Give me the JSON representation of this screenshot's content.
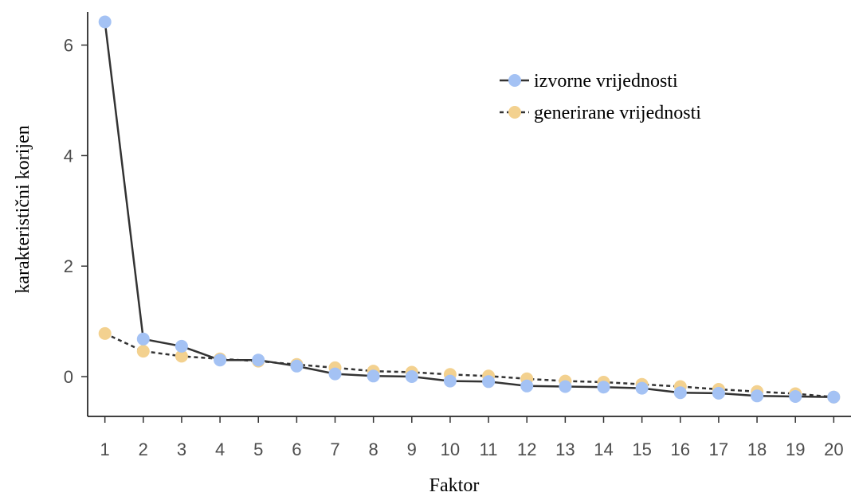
{
  "chart_data": {
    "type": "line",
    "xlabel": "Faktor",
    "ylabel": "karakteristični korijen",
    "x": [
      1,
      2,
      3,
      4,
      5,
      6,
      7,
      8,
      9,
      10,
      11,
      12,
      13,
      14,
      15,
      16,
      17,
      18,
      19,
      20
    ],
    "xticks": [
      "1",
      "2",
      "3",
      "4",
      "5",
      "6",
      "7",
      "8",
      "9",
      "10",
      "11",
      "12",
      "13",
      "14",
      "15",
      "16",
      "17",
      "18",
      "19",
      "20"
    ],
    "yticks": [
      "0",
      "2",
      "4",
      "6"
    ],
    "ylim": [
      -0.72,
      6.6
    ],
    "xlim": [
      0.55,
      20.45
    ],
    "grid": false,
    "legend_position": "top-right",
    "series": [
      {
        "name": "izvorne vrijednosti",
        "color": "#a4c2f4",
        "line_style": "solid",
        "values": [
          6.42,
          0.68,
          0.55,
          0.3,
          0.3,
          0.19,
          0.05,
          0.01,
          0.0,
          -0.08,
          -0.09,
          -0.17,
          -0.18,
          -0.19,
          -0.21,
          -0.29,
          -0.3,
          -0.35,
          -0.36,
          -0.37
        ]
      },
      {
        "name": "generirane vrijednosti",
        "color": "#f3d18f",
        "line_style": "dashed",
        "values": [
          0.78,
          0.46,
          0.37,
          0.32,
          0.28,
          0.22,
          0.16,
          0.1,
          0.08,
          0.04,
          0.01,
          -0.04,
          -0.08,
          -0.1,
          -0.14,
          -0.18,
          -0.23,
          -0.27,
          -0.31,
          -0.37
        ]
      }
    ]
  }
}
